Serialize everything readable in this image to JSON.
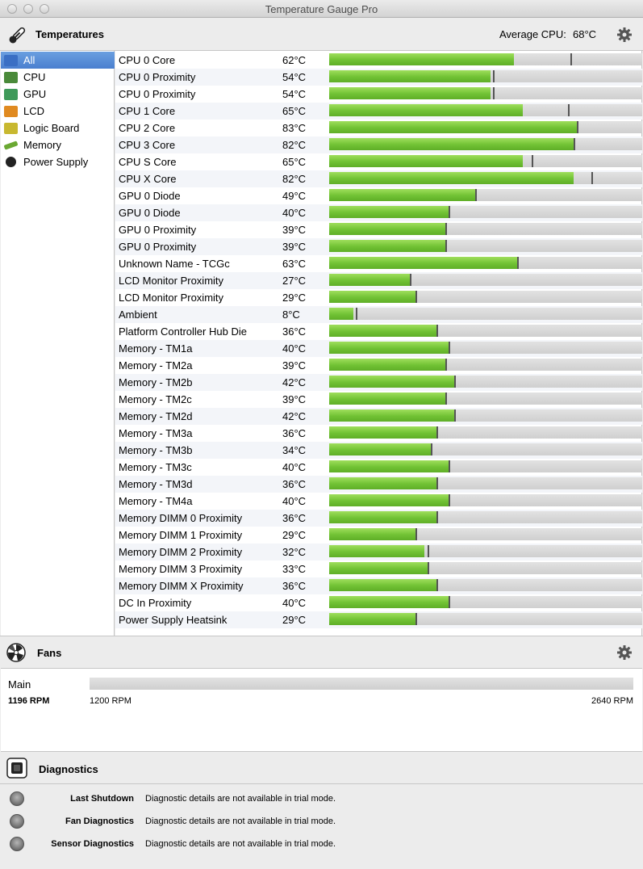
{
  "window": {
    "title": "Temperature Gauge Pro"
  },
  "temperatures": {
    "title": "Temperatures",
    "avg_label": "Average CPU:",
    "avg_value": "68°C",
    "gauge_max_c": 105
  },
  "sidebar": {
    "items": [
      {
        "label": "All",
        "icon": "display-icon",
        "color": "#3a6fc4",
        "selected": true
      },
      {
        "label": "CPU",
        "icon": "cpu-chip-icon",
        "color": "#4a8a3a"
      },
      {
        "label": "GPU",
        "icon": "gpu-chip-icon",
        "color": "#3f9a5a"
      },
      {
        "label": "LCD",
        "icon": "lcd-icon",
        "color": "#e08a20"
      },
      {
        "label": "Logic Board",
        "icon": "logic-board-icon",
        "color": "#c8b830"
      },
      {
        "label": "Memory",
        "icon": "memory-icon",
        "color": "#6aa832"
      },
      {
        "label": "Power Supply",
        "icon": "power-icon",
        "color": "#222222"
      }
    ]
  },
  "sensors": [
    {
      "name": "CPU 0 Core",
      "value": "62°C",
      "temp": 62,
      "max": 81
    },
    {
      "name": "CPU 0 Proximity",
      "value": "54°C",
      "temp": 54,
      "max": 55
    },
    {
      "name": "CPU 0 Proximity",
      "value": "54°C",
      "temp": 54,
      "max": 55
    },
    {
      "name": "CPU 1 Core",
      "value": "65°C",
      "temp": 65,
      "max": 80
    },
    {
      "name": "CPU 2 Core",
      "value": "83°C",
      "temp": 83,
      "max": 83
    },
    {
      "name": "CPU 3 Core",
      "value": "82°C",
      "temp": 82,
      "max": 82
    },
    {
      "name": "CPU S Core",
      "value": "65°C",
      "temp": 65,
      "max": 68
    },
    {
      "name": "CPU X Core",
      "value": "82°C",
      "temp": 82,
      "max": 88
    },
    {
      "name": "GPU 0 Diode",
      "value": "49°C",
      "temp": 49,
      "max": 49
    },
    {
      "name": "GPU 0 Diode",
      "value": "40°C",
      "temp": 40,
      "max": 40
    },
    {
      "name": "GPU 0 Proximity",
      "value": "39°C",
      "temp": 39,
      "max": 39
    },
    {
      "name": "GPU 0 Proximity",
      "value": "39°C",
      "temp": 39,
      "max": 39
    },
    {
      "name": "Unknown Name - TCGc",
      "value": "63°C",
      "temp": 63,
      "max": 63
    },
    {
      "name": "LCD Monitor Proximity",
      "value": "27°C",
      "temp": 27,
      "max": 27
    },
    {
      "name": "LCD Monitor Proximity",
      "value": "29°C",
      "temp": 29,
      "max": 29
    },
    {
      "name": "Ambient",
      "value": "8°C",
      "temp": 8,
      "max": 9
    },
    {
      "name": "Platform Controller Hub Die",
      "value": "36°C",
      "temp": 36,
      "max": 36
    },
    {
      "name": "Memory - TM1a",
      "value": "40°C",
      "temp": 40,
      "max": 40
    },
    {
      "name": "Memory - TM2a",
      "value": "39°C",
      "temp": 39,
      "max": 39
    },
    {
      "name": "Memory - TM2b",
      "value": "42°C",
      "temp": 42,
      "max": 42
    },
    {
      "name": "Memory - TM2c",
      "value": "39°C",
      "temp": 39,
      "max": 39
    },
    {
      "name": "Memory - TM2d",
      "value": "42°C",
      "temp": 42,
      "max": 42
    },
    {
      "name": "Memory - TM3a",
      "value": "36°C",
      "temp": 36,
      "max": 36
    },
    {
      "name": "Memory - TM3b",
      "value": "34°C",
      "temp": 34,
      "max": 34
    },
    {
      "name": "Memory - TM3c",
      "value": "40°C",
      "temp": 40,
      "max": 40
    },
    {
      "name": "Memory - TM3d",
      "value": "36°C",
      "temp": 36,
      "max": 36
    },
    {
      "name": "Memory - TM4a",
      "value": "40°C",
      "temp": 40,
      "max": 40
    },
    {
      "name": "Memory DIMM 0 Proximity",
      "value": "36°C",
      "temp": 36,
      "max": 36
    },
    {
      "name": "Memory DIMM 1 Proximity",
      "value": "29°C",
      "temp": 29,
      "max": 29
    },
    {
      "name": "Memory DIMM 2 Proximity",
      "value": "32°C",
      "temp": 32,
      "max": 33
    },
    {
      "name": "Memory DIMM 3 Proximity",
      "value": "33°C",
      "temp": 33,
      "max": 33
    },
    {
      "name": "Memory DIMM X Proximity",
      "value": "36°C",
      "temp": 36,
      "max": 36
    },
    {
      "name": "DC In Proximity",
      "value": "40°C",
      "temp": 40,
      "max": 40
    },
    {
      "name": "Power Supply Heatsink",
      "value": "29°C",
      "temp": 29,
      "max": 29
    }
  ],
  "fans": {
    "title": "Fans",
    "items": [
      {
        "name": "Main",
        "rpm": "1196 RPM",
        "min_label": "1200 RPM",
        "max_label": "2640 RPM"
      }
    ]
  },
  "diagnostics": {
    "title": "Diagnostics",
    "items": [
      {
        "label": "Last Shutdown",
        "text": "Diagnostic details are not available in trial mode."
      },
      {
        "label": "Fan Diagnostics",
        "text": "Diagnostic details are not available in trial mode."
      },
      {
        "label": "Sensor Diagnostics",
        "text": "Diagnostic details are not available in trial mode."
      }
    ]
  },
  "colors": {
    "bar_fill": "#71c234",
    "selection": "#4a7fcf"
  }
}
